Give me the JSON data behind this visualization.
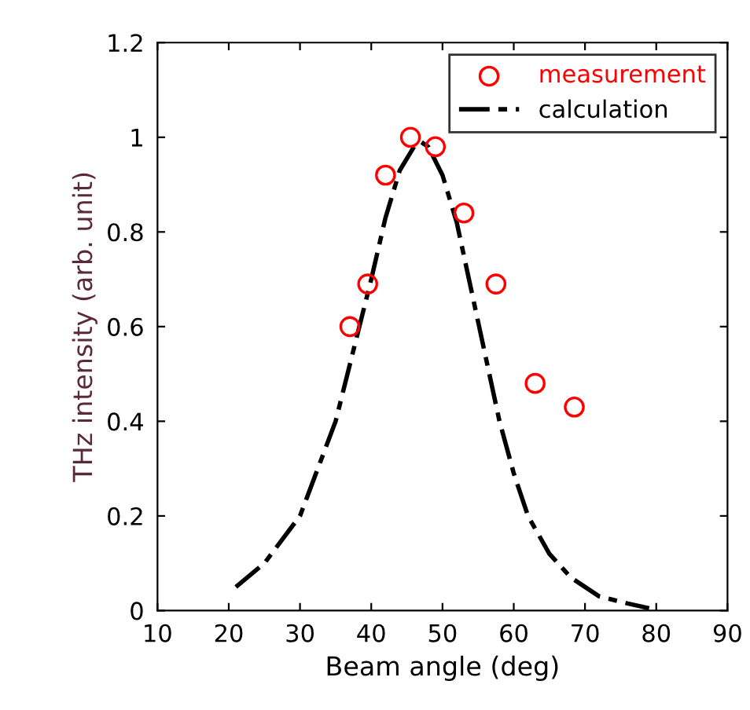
{
  "chart_data": {
    "type": "scatter",
    "xlabel": "Beam angle (deg)",
    "ylabel": "THz intensity (arb. unit)",
    "xlim": [
      10,
      90
    ],
    "xticks": [
      10,
      20,
      30,
      40,
      50,
      60,
      70,
      80,
      90
    ],
    "ylim": [
      0,
      1.2
    ],
    "yticks": [
      0,
      0.2,
      0.4,
      0.6,
      0.8,
      1,
      1.2
    ],
    "grid": false,
    "legend": "top right",
    "series": [
      {
        "name": "measurement",
        "color": "#ff0000",
        "marker": "circle",
        "x": [
          37,
          39.5,
          42,
          45.5,
          49,
          53,
          57.5,
          63,
          68.5
        ],
        "values": [
          0.6,
          0.69,
          0.92,
          1.0,
          0.98,
          0.84,
          0.69,
          0.48,
          0.43
        ]
      },
      {
        "name": "calculation",
        "type": "line",
        "color": "#000000",
        "marker": "none",
        "line_style": "dashed",
        "x": [
          21,
          25,
          30,
          35,
          38,
          40,
          42,
          44,
          46,
          47,
          48,
          50,
          52,
          54,
          56,
          58,
          60,
          62,
          65,
          68,
          72,
          76,
          79
        ],
        "values": [
          0.05,
          0.1,
          0.2,
          0.4,
          0.58,
          0.7,
          0.83,
          0.93,
          0.98,
          0.99,
          0.98,
          0.92,
          0.82,
          0.68,
          0.54,
          0.4,
          0.29,
          0.2,
          0.12,
          0.07,
          0.03,
          0.015,
          0.005
        ]
      }
    ]
  }
}
